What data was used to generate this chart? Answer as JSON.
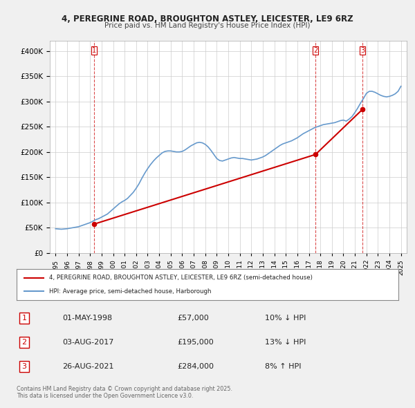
{
  "title1": "4, PEREGRINE ROAD, BROUGHTON ASTLEY, LEICESTER, LE9 6RZ",
  "title2": "Price paid vs. HM Land Registry's House Price Index (HPI)",
  "legend_line1": "4, PEREGRINE ROAD, BROUGHTON ASTLEY, LEICESTER, LE9 6RZ (semi-detached house)",
  "legend_line2": "HPI: Average price, semi-detached house, Harborough",
  "footer": "Contains HM Land Registry data © Crown copyright and database right 2025.\nThis data is licensed under the Open Government Licence v3.0.",
  "sale_color": "#cc0000",
  "hpi_color": "#6699cc",
  "background_color": "#f0f0f0",
  "plot_bg_color": "#ffffff",
  "ylim": [
    0,
    420000
  ],
  "yticks": [
    0,
    50000,
    100000,
    150000,
    200000,
    250000,
    300000,
    350000,
    400000
  ],
  "transactions": [
    {
      "num": 1,
      "date": "01-MAY-1998",
      "price": 57000,
      "pct": "10%",
      "dir": "↓",
      "x_year": 1998.33
    },
    {
      "num": 2,
      "date": "03-AUG-2017",
      "price": 195000,
      "pct": "13%",
      "dir": "↓",
      "x_year": 2017.58
    },
    {
      "num": 3,
      "date": "26-AUG-2021",
      "price": 284000,
      "pct": "8%",
      "dir": "↑",
      "x_year": 2021.65
    }
  ],
  "hpi_data": {
    "years": [
      1995.0,
      1995.25,
      1995.5,
      1995.75,
      1996.0,
      1996.25,
      1996.5,
      1996.75,
      1997.0,
      1997.25,
      1997.5,
      1997.75,
      1998.0,
      1998.25,
      1998.5,
      1998.75,
      1999.0,
      1999.25,
      1999.5,
      1999.75,
      2000.0,
      2000.25,
      2000.5,
      2000.75,
      2001.0,
      2001.25,
      2001.5,
      2001.75,
      2002.0,
      2002.25,
      2002.5,
      2002.75,
      2003.0,
      2003.25,
      2003.5,
      2003.75,
      2004.0,
      2004.25,
      2004.5,
      2004.75,
      2005.0,
      2005.25,
      2005.5,
      2005.75,
      2006.0,
      2006.25,
      2006.5,
      2006.75,
      2007.0,
      2007.25,
      2007.5,
      2007.75,
      2008.0,
      2008.25,
      2008.5,
      2008.75,
      2009.0,
      2009.25,
      2009.5,
      2009.75,
      2010.0,
      2010.25,
      2010.5,
      2010.75,
      2011.0,
      2011.25,
      2011.5,
      2011.75,
      2012.0,
      2012.25,
      2012.5,
      2012.75,
      2013.0,
      2013.25,
      2013.5,
      2013.75,
      2014.0,
      2014.25,
      2014.5,
      2014.75,
      2015.0,
      2015.25,
      2015.5,
      2015.75,
      2016.0,
      2016.25,
      2016.5,
      2016.75,
      2017.0,
      2017.25,
      2017.5,
      2017.75,
      2018.0,
      2018.25,
      2018.5,
      2018.75,
      2019.0,
      2019.25,
      2019.5,
      2019.75,
      2020.0,
      2020.25,
      2020.5,
      2020.75,
      2021.0,
      2021.25,
      2021.5,
      2021.75,
      2022.0,
      2022.25,
      2022.5,
      2022.75,
      2023.0,
      2023.25,
      2023.5,
      2023.75,
      2024.0,
      2024.25,
      2024.5,
      2024.75,
      2025.0
    ],
    "values": [
      48000,
      47500,
      47000,
      47500,
      48000,
      49000,
      50000,
      51000,
      52000,
      54000,
      56000,
      58000,
      60000,
      63000,
      66000,
      68000,
      71000,
      74000,
      77000,
      82000,
      87000,
      92000,
      97000,
      101000,
      104000,
      108000,
      114000,
      120000,
      128000,
      137000,
      148000,
      158000,
      167000,
      175000,
      182000,
      188000,
      193000,
      198000,
      201000,
      202000,
      202000,
      201000,
      200000,
      200000,
      201000,
      204000,
      208000,
      212000,
      215000,
      218000,
      219000,
      218000,
      215000,
      210000,
      203000,
      195000,
      187000,
      183000,
      182000,
      184000,
      186000,
      188000,
      189000,
      188000,
      187000,
      187000,
      186000,
      185000,
      184000,
      185000,
      186000,
      188000,
      190000,
      193000,
      197000,
      201000,
      205000,
      209000,
      213000,
      216000,
      218000,
      220000,
      222000,
      225000,
      228000,
      232000,
      236000,
      239000,
      242000,
      245000,
      248000,
      250000,
      252000,
      254000,
      255000,
      256000,
      257000,
      258000,
      260000,
      262000,
      263000,
      261000,
      265000,
      270000,
      278000,
      287000,
      297000,
      306000,
      316000,
      320000,
      320000,
      318000,
      315000,
      312000,
      310000,
      309000,
      310000,
      312000,
      315000,
      320000,
      330000
    ]
  },
  "sale_data": {
    "years": [
      1998.33,
      2017.58,
      2021.65
    ],
    "values": [
      57000,
      195000,
      284000
    ]
  },
  "xlim": [
    1994.5,
    2025.5
  ],
  "xticks": [
    1995,
    1996,
    1997,
    1998,
    1999,
    2000,
    2001,
    2002,
    2003,
    2004,
    2005,
    2006,
    2007,
    2008,
    2009,
    2010,
    2011,
    2012,
    2013,
    2014,
    2015,
    2016,
    2017,
    2018,
    2019,
    2020,
    2021,
    2022,
    2023,
    2024,
    2025
  ]
}
